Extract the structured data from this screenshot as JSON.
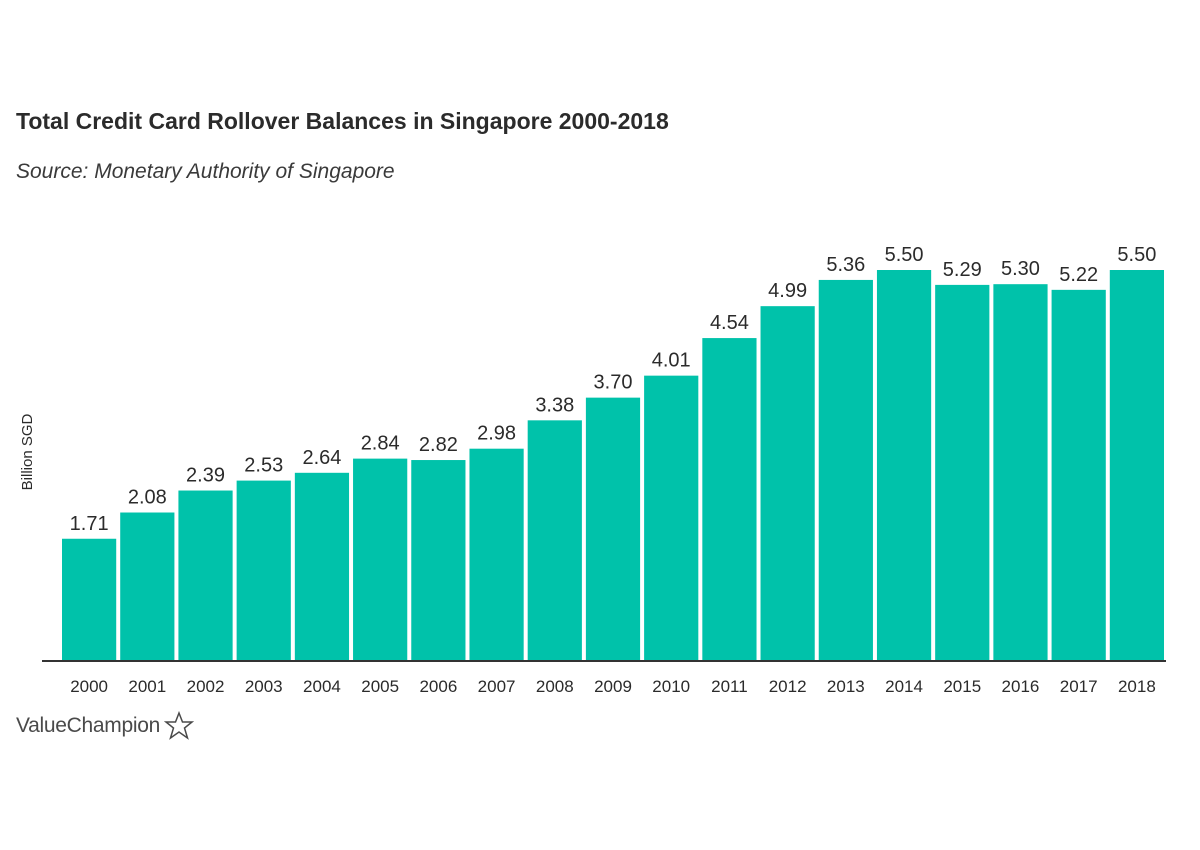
{
  "chart_data": {
    "type": "bar",
    "title": "Total Credit Card Rollover Balances in Singapore 2000-2018",
    "subtitle": "Source: Monetary Authority of Singapore",
    "xlabel": "",
    "ylabel": "Billion SGD",
    "categories": [
      "2000",
      "2001",
      "2002",
      "2003",
      "2004",
      "2005",
      "2006",
      "2007",
      "2008",
      "2009",
      "2010",
      "2011",
      "2012",
      "2013",
      "2014",
      "2015",
      "2016",
      "2017",
      "2018"
    ],
    "values": [
      1.71,
      2.08,
      2.39,
      2.53,
      2.64,
      2.84,
      2.82,
      2.98,
      3.38,
      3.7,
      4.01,
      4.54,
      4.99,
      5.36,
      5.5,
      5.29,
      5.3,
      5.22,
      5.5
    ],
    "value_labels": [
      "1.71",
      "2.08",
      "2.39",
      "2.53",
      "2.64",
      "2.84",
      "2.82",
      "2.98",
      "3.38",
      "3.70",
      "4.01",
      "4.54",
      "4.99",
      "5.36",
      "5.50",
      "5.29",
      "5.30",
      "5.22",
      "5.50"
    ],
    "ylim": [
      0,
      5.5
    ],
    "grid": false,
    "legend": "none",
    "bar_color": "#00c2aa",
    "axis_color": "#333333"
  },
  "brand": {
    "name": "ValueChampion",
    "icon": "star-outline-icon"
  }
}
